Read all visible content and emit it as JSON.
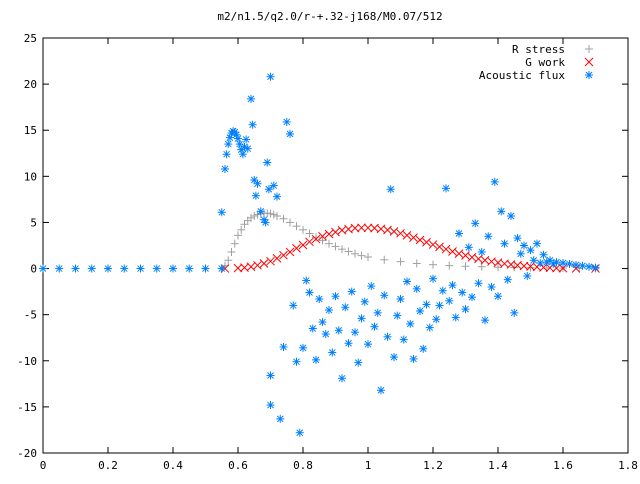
{
  "chart_data": {
    "type": "scatter",
    "title": "m2/n1.5/q2.0/r-+.32-j168/M0.07/512",
    "xlabel": "",
    "ylabel": "",
    "xlim": [
      0,
      1.8
    ],
    "ylim": [
      -20,
      25
    ],
    "xticks": [
      "0",
      "0.2",
      "0.4",
      "0.6",
      "0.8",
      "1",
      "1.2",
      "1.4",
      "1.6",
      "1.8"
    ],
    "yticks": [
      "-20",
      "-15",
      "-10",
      "-5",
      "0",
      "5",
      "10",
      "15",
      "20",
      "25"
    ],
    "grid": false,
    "legend_position": "top-right",
    "series": [
      {
        "name": "R stress",
        "marker": "plus",
        "color": "#a0a0a0",
        "points": [
          [
            0.0,
            0
          ],
          [
            0.1,
            0
          ],
          [
            0.2,
            0
          ],
          [
            0.3,
            0
          ],
          [
            0.4,
            0
          ],
          [
            0.5,
            0
          ],
          [
            0.55,
            0
          ],
          [
            0.56,
            0.3
          ],
          [
            0.57,
            0.9
          ],
          [
            0.58,
            1.8
          ],
          [
            0.59,
            2.7
          ],
          [
            0.6,
            3.6
          ],
          [
            0.61,
            4.2
          ],
          [
            0.62,
            4.8
          ],
          [
            0.63,
            5.2
          ],
          [
            0.64,
            5.5
          ],
          [
            0.65,
            5.7
          ],
          [
            0.66,
            5.85
          ],
          [
            0.67,
            5.95
          ],
          [
            0.68,
            6.0
          ],
          [
            0.69,
            6.0
          ],
          [
            0.7,
            5.95
          ],
          [
            0.71,
            5.85
          ],
          [
            0.72,
            5.7
          ],
          [
            0.74,
            5.4
          ],
          [
            0.76,
            5.0
          ],
          [
            0.78,
            4.6
          ],
          [
            0.8,
            4.2
          ],
          [
            0.82,
            3.8
          ],
          [
            0.84,
            3.4
          ],
          [
            0.86,
            3.05
          ],
          [
            0.88,
            2.7
          ],
          [
            0.9,
            2.4
          ],
          [
            0.92,
            2.1
          ],
          [
            0.94,
            1.85
          ],
          [
            0.96,
            1.6
          ],
          [
            0.98,
            1.4
          ],
          [
            1.0,
            1.25
          ],
          [
            1.05,
            0.95
          ],
          [
            1.1,
            0.75
          ],
          [
            1.15,
            0.55
          ],
          [
            1.2,
            0.42
          ],
          [
            1.25,
            0.32
          ],
          [
            1.3,
            0.25
          ],
          [
            1.35,
            0.2
          ],
          [
            1.4,
            0.15
          ],
          [
            1.45,
            0.12
          ],
          [
            1.5,
            0.1
          ],
          [
            1.55,
            0.07
          ],
          [
            1.6,
            0.05
          ],
          [
            1.65,
            0.03
          ],
          [
            1.7,
            0.01
          ]
        ]
      },
      {
        "name": "G work",
        "marker": "cross",
        "color": "#ff0000",
        "points": [
          [
            0.56,
            0
          ],
          [
            0.6,
            0.05
          ],
          [
            0.62,
            0.1
          ],
          [
            0.64,
            0.2
          ],
          [
            0.66,
            0.35
          ],
          [
            0.68,
            0.55
          ],
          [
            0.7,
            0.8
          ],
          [
            0.72,
            1.1
          ],
          [
            0.74,
            1.45
          ],
          [
            0.76,
            1.8
          ],
          [
            0.78,
            2.2
          ],
          [
            0.8,
            2.55
          ],
          [
            0.82,
            2.9
          ],
          [
            0.84,
            3.2
          ],
          [
            0.86,
            3.5
          ],
          [
            0.88,
            3.75
          ],
          [
            0.9,
            3.95
          ],
          [
            0.92,
            4.15
          ],
          [
            0.94,
            4.28
          ],
          [
            0.96,
            4.38
          ],
          [
            0.98,
            4.42
          ],
          [
            1.0,
            4.42
          ],
          [
            1.02,
            4.38
          ],
          [
            1.04,
            4.3
          ],
          [
            1.06,
            4.18
          ],
          [
            1.08,
            4.02
          ],
          [
            1.1,
            3.82
          ],
          [
            1.12,
            3.6
          ],
          [
            1.14,
            3.35
          ],
          [
            1.16,
            3.1
          ],
          [
            1.18,
            2.85
          ],
          [
            1.2,
            2.6
          ],
          [
            1.22,
            2.35
          ],
          [
            1.24,
            2.1
          ],
          [
            1.26,
            1.85
          ],
          [
            1.28,
            1.62
          ],
          [
            1.3,
            1.42
          ],
          [
            1.32,
            1.22
          ],
          [
            1.34,
            1.05
          ],
          [
            1.36,
            0.9
          ],
          [
            1.38,
            0.76
          ],
          [
            1.4,
            0.64
          ],
          [
            1.42,
            0.53
          ],
          [
            1.44,
            0.44
          ],
          [
            1.46,
            0.36
          ],
          [
            1.48,
            0.28
          ],
          [
            1.5,
            0.22
          ],
          [
            1.52,
            0.17
          ],
          [
            1.54,
            0.12
          ],
          [
            1.56,
            0.08
          ],
          [
            1.58,
            0.05
          ],
          [
            1.6,
            0.03
          ],
          [
            1.64,
            0.01
          ],
          [
            1.7,
            0
          ]
        ]
      },
      {
        "name": "Acoustic flux",
        "marker": "star",
        "color": "#0080ff",
        "points": [
          [
            0.0,
            0
          ],
          [
            0.05,
            0
          ],
          [
            0.1,
            0
          ],
          [
            0.15,
            0
          ],
          [
            0.2,
            0
          ],
          [
            0.25,
            0
          ],
          [
            0.3,
            0
          ],
          [
            0.35,
            0
          ],
          [
            0.4,
            0
          ],
          [
            0.45,
            0
          ],
          [
            0.5,
            0
          ],
          [
            0.55,
            0
          ],
          [
            0.55,
            6.1
          ],
          [
            0.56,
            10.8
          ],
          [
            0.565,
            12.4
          ],
          [
            0.57,
            13.5
          ],
          [
            0.575,
            14.2
          ],
          [
            0.58,
            14.7
          ],
          [
            0.585,
            14.9
          ],
          [
            0.59,
            14.8
          ],
          [
            0.595,
            14.5
          ],
          [
            0.6,
            14.1
          ],
          [
            0.605,
            13.5
          ],
          [
            0.61,
            12.9
          ],
          [
            0.615,
            12.4
          ],
          [
            0.62,
            13.2
          ],
          [
            0.625,
            14.0
          ],
          [
            0.63,
            13.0
          ],
          [
            0.64,
            18.4
          ],
          [
            0.645,
            15.6
          ],
          [
            0.65,
            9.6
          ],
          [
            0.655,
            7.9
          ],
          [
            0.66,
            9.2
          ],
          [
            0.67,
            6.2
          ],
          [
            0.68,
            5.3
          ],
          [
            0.685,
            5.0
          ],
          [
            0.69,
            11.5
          ],
          [
            0.695,
            8.6
          ],
          [
            0.7,
            20.8
          ],
          [
            0.7,
            -11.6
          ],
          [
            0.7,
            -14.8
          ],
          [
            0.71,
            9.0
          ],
          [
            0.72,
            7.8
          ],
          [
            0.73,
            -16.3
          ],
          [
            0.74,
            -8.5
          ],
          [
            0.75,
            15.9
          ],
          [
            0.76,
            14.6
          ],
          [
            0.77,
            -4.0
          ],
          [
            0.78,
            -10.1
          ],
          [
            0.79,
            -17.8
          ],
          [
            0.8,
            -8.6
          ],
          [
            0.81,
            -1.3
          ],
          [
            0.82,
            -2.6
          ],
          [
            0.83,
            -6.5
          ],
          [
            0.84,
            -9.9
          ],
          [
            0.85,
            -3.3
          ],
          [
            0.86,
            -5.8
          ],
          [
            0.87,
            -7.1
          ],
          [
            0.88,
            -4.5
          ],
          [
            0.89,
            -9.1
          ],
          [
            0.9,
            -3.0
          ],
          [
            0.91,
            -6.7
          ],
          [
            0.92,
            -11.9
          ],
          [
            0.93,
            -4.2
          ],
          [
            0.94,
            -8.1
          ],
          [
            0.95,
            -2.5
          ],
          [
            0.96,
            -6.9
          ],
          [
            0.97,
            -10.2
          ],
          [
            0.98,
            -5.4
          ],
          [
            0.99,
            -3.6
          ],
          [
            1.0,
            -8.2
          ],
          [
            1.01,
            -1.9
          ],
          [
            1.02,
            -6.3
          ],
          [
            1.03,
            -4.8
          ],
          [
            1.04,
            -13.2
          ],
          [
            1.05,
            -2.9
          ],
          [
            1.06,
            -7.4
          ],
          [
            1.07,
            8.6
          ],
          [
            1.08,
            -9.6
          ],
          [
            1.09,
            -5.1
          ],
          [
            1.1,
            -3.3
          ],
          [
            1.11,
            -7.7
          ],
          [
            1.12,
            -1.4
          ],
          [
            1.13,
            -6.0
          ],
          [
            1.14,
            -9.8
          ],
          [
            1.15,
            -2.2
          ],
          [
            1.16,
            -4.6
          ],
          [
            1.17,
            -8.7
          ],
          [
            1.18,
            -3.9
          ],
          [
            1.19,
            -6.4
          ],
          [
            1.2,
            -1.1
          ],
          [
            1.21,
            -5.5
          ],
          [
            1.22,
            -4.0
          ],
          [
            1.23,
            -2.4
          ],
          [
            1.24,
            8.7
          ],
          [
            1.25,
            -3.5
          ],
          [
            1.26,
            -1.8
          ],
          [
            1.27,
            -5.3
          ],
          [
            1.28,
            3.8
          ],
          [
            1.29,
            -2.6
          ],
          [
            1.3,
            -4.4
          ],
          [
            1.31,
            2.3
          ],
          [
            1.32,
            -3.1
          ],
          [
            1.33,
            4.9
          ],
          [
            1.34,
            -1.6
          ],
          [
            1.35,
            1.8
          ],
          [
            1.36,
            -5.6
          ],
          [
            1.37,
            3.5
          ],
          [
            1.38,
            -2.0
          ],
          [
            1.39,
            9.4
          ],
          [
            1.4,
            -3.0
          ],
          [
            1.41,
            6.2
          ],
          [
            1.42,
            2.7
          ],
          [
            1.43,
            -1.2
          ],
          [
            1.44,
            5.7
          ],
          [
            1.45,
            -4.8
          ],
          [
            1.46,
            3.3
          ],
          [
            1.47,
            1.6
          ],
          [
            1.48,
            2.5
          ],
          [
            1.49,
            -0.8
          ],
          [
            1.5,
            2.0
          ],
          [
            1.51,
            0.9
          ],
          [
            1.52,
            2.7
          ],
          [
            1.53,
            0.6
          ],
          [
            1.54,
            1.5
          ],
          [
            1.55,
            0.7
          ],
          [
            1.56,
            0.9
          ],
          [
            1.57,
            0.5
          ],
          [
            1.58,
            0.7
          ],
          [
            1.6,
            0.6
          ],
          [
            1.62,
            0.5
          ],
          [
            1.64,
            0.4
          ],
          [
            1.66,
            0.3
          ],
          [
            1.68,
            0.2
          ],
          [
            1.7,
            0.1
          ]
        ]
      }
    ]
  }
}
